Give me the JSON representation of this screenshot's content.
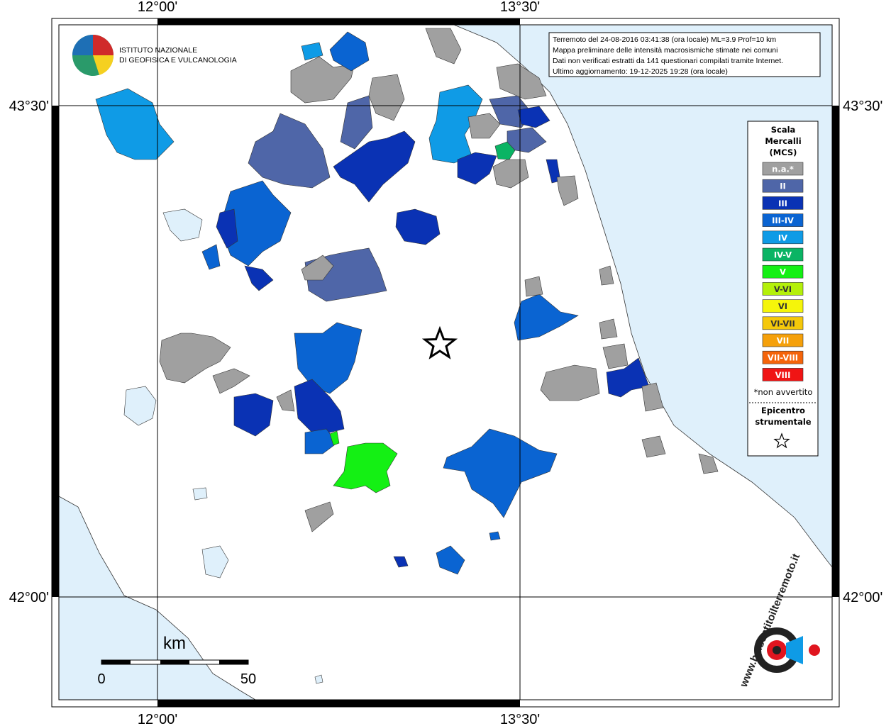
{
  "map": {
    "lon_labels": [
      "12°00'",
      "13°30'"
    ],
    "lat_labels": [
      "43°30'",
      "42°00'"
    ]
  },
  "logo": {
    "lines": [
      "ISTITUTO NAZIONALE",
      "DI GEOFISICA E VULCANOLOGIA"
    ]
  },
  "info": {
    "lines": [
      "Terremoto del 24-08-2016 03:41:38 (ora locale) ML=3.9 Prof=10 km",
      "Mappa preliminare delle intensità macrosismiche stimate nei comuni",
      "Dati non verificati estratti da 141 questionari compilati tramite Internet.",
      "Ultimo aggiornamento: 19-12-2025 19:28 (ora locale)"
    ]
  },
  "legend": {
    "title": [
      "Scala",
      "Mercalli",
      "(MCS)"
    ],
    "items": [
      {
        "label": "n.a.*",
        "color": "#a0a0a0"
      },
      {
        "label": "II",
        "color": "#4f66a8"
      },
      {
        "label": "III",
        "color": "#0a32b4"
      },
      {
        "label": "III-IV",
        "color": "#0a64d2"
      },
      {
        "label": "IV",
        "color": "#0f9be6"
      },
      {
        "label": "IV-V",
        "color": "#0ab464"
      },
      {
        "label": "V",
        "color": "#14f014"
      },
      {
        "label": "V-VI",
        "color": "#b4f00a"
      },
      {
        "label": "VI",
        "color": "#f5f50a"
      },
      {
        "label": "VI-VII",
        "color": "#f5c80a"
      },
      {
        "label": "VII",
        "color": "#f5a00a"
      },
      {
        "label": "VII-VIII",
        "color": "#f5640a"
      },
      {
        "label": "VIII",
        "color": "#f01414"
      }
    ],
    "note": "*non avvertito",
    "epicentre": [
      "Epicentro",
      "strumentale"
    ]
  },
  "scale_bar": {
    "unit": "km",
    "labels": [
      "0",
      "50"
    ]
  },
  "site": "www.haisentitoilterremoto.it"
}
